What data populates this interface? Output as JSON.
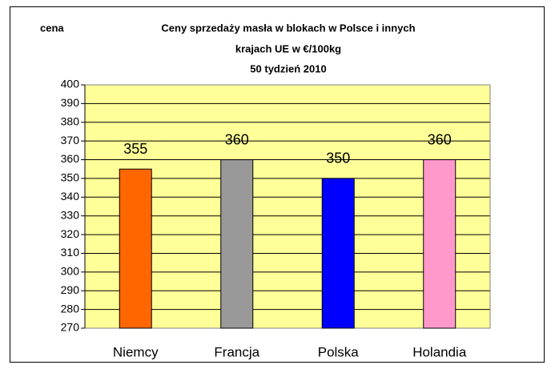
{
  "chart_data": {
    "type": "bar",
    "title": [
      "Ceny sprzedaży masła w blokach w Polsce i  innych",
      "krajach UE w €/100kg",
      "50 tydzień 2010"
    ],
    "y_label": "cena",
    "categories": [
      "Niemcy",
      "Francja",
      "Polska",
      "Holandia"
    ],
    "values": [
      355,
      360,
      350,
      360
    ],
    "colors": [
      "#ff6600",
      "#999999",
      "#0000ff",
      "#ff99cc"
    ],
    "ylim": [
      270,
      400
    ],
    "yticks": [
      270,
      280,
      290,
      300,
      310,
      320,
      330,
      340,
      350,
      360,
      370,
      380,
      390,
      400
    ],
    "grid": true
  }
}
